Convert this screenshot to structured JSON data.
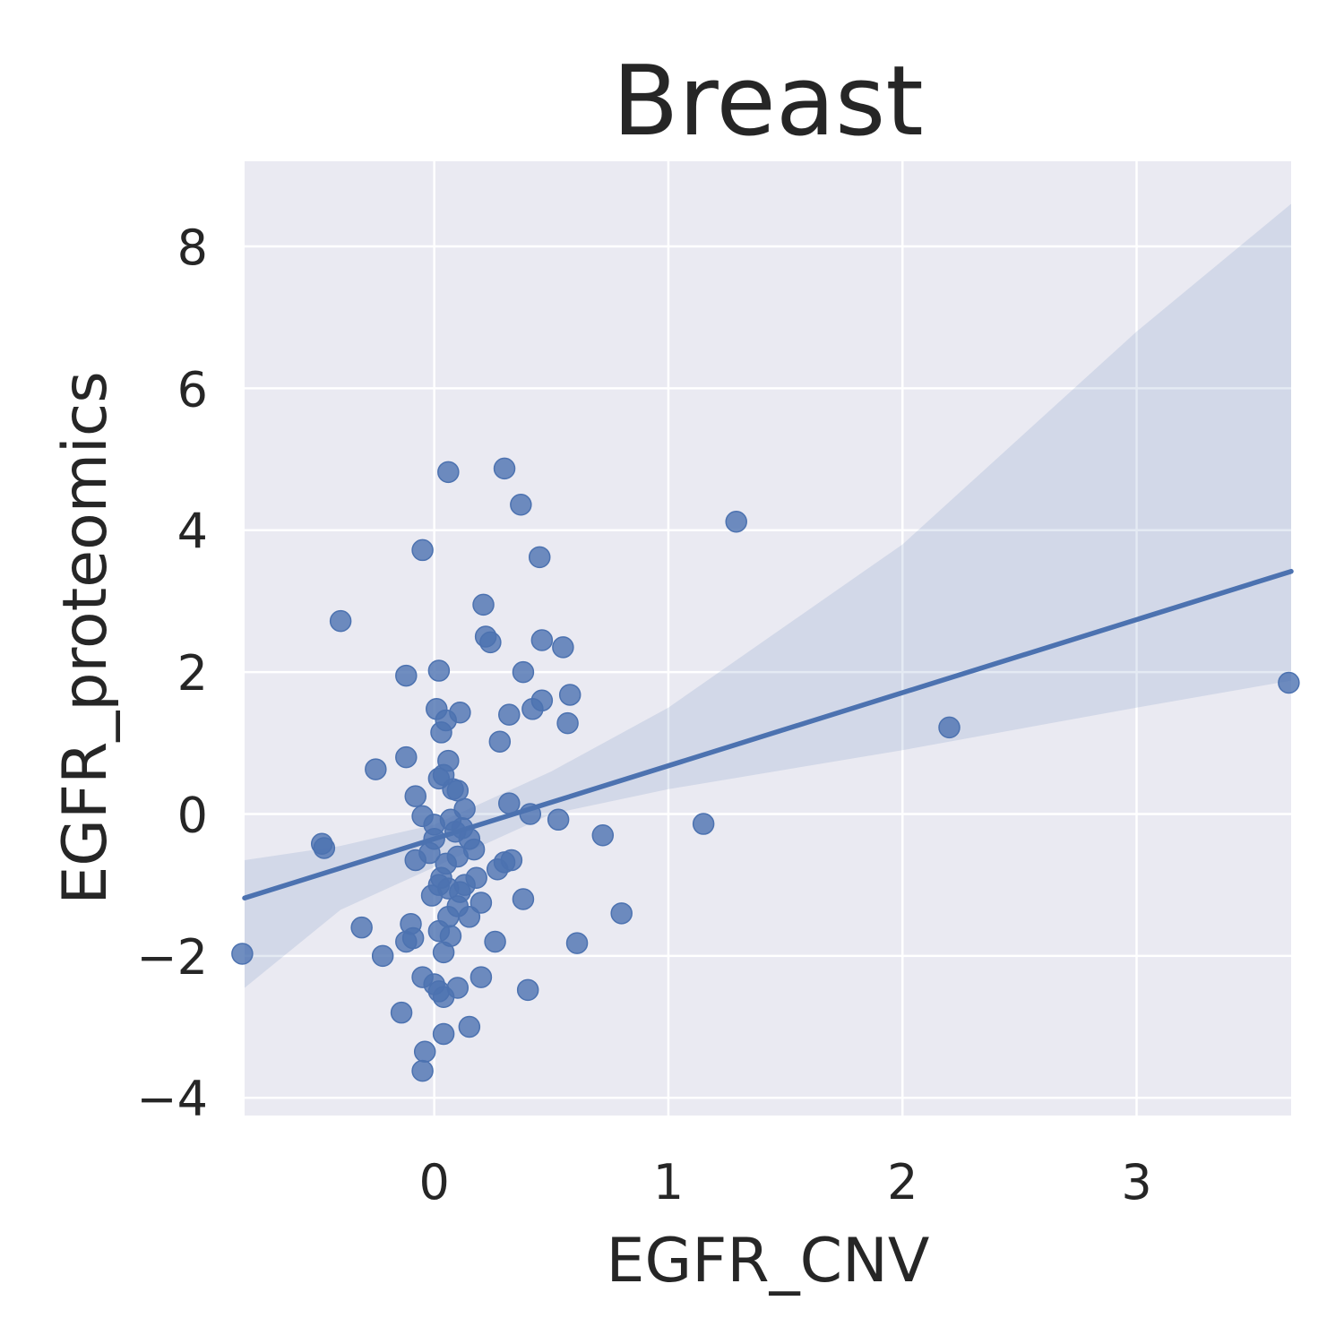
{
  "chart_data": {
    "type": "scatter",
    "title": "Breast",
    "xlabel": "EGFR_CNV",
    "ylabel": "EGFR_proteomics",
    "xlim": [
      -0.81,
      3.66
    ],
    "ylim": [
      -4.25,
      9.2
    ],
    "xticks": [
      0,
      1,
      2,
      3
    ],
    "yticks": [
      -4,
      -2,
      0,
      2,
      4,
      6,
      8
    ],
    "xtick_labels": [
      "0",
      "1",
      "2",
      "3"
    ],
    "ytick_labels": [
      "−4",
      "−2",
      "0",
      "2",
      "4",
      "6",
      "8"
    ],
    "grid": true,
    "colors": {
      "points": "#4c72b0",
      "line": "#4c72b0",
      "band": "#4c72b0",
      "background": "#eaeaf2",
      "grid": "#ffffff"
    },
    "regression": {
      "slope": 1.03,
      "intercept": -0.35
    },
    "confidence_band": {
      "x": [
        -0.81,
        -0.4,
        0.0,
        0.2,
        0.5,
        1.0,
        2.0,
        3.0,
        3.66
      ],
      "lower": [
        -2.45,
        -1.35,
        -0.75,
        -0.45,
        0.0,
        0.35,
        0.9,
        1.5,
        1.88
      ],
      "upper": [
        -0.65,
        -0.45,
        -0.15,
        0.15,
        0.6,
        1.5,
        3.8,
        6.8,
        8.6
      ]
    },
    "x": [
      0.06,
      0.3,
      0.37,
      -0.05,
      0.45,
      1.29,
      -0.4,
      0.21,
      0.22,
      0.24,
      0.46,
      0.55,
      0.02,
      -0.12,
      0.38,
      0.58,
      0.46,
      0.42,
      0.01,
      0.11,
      0.32,
      0.57,
      0.03,
      0.05,
      0.28,
      -0.12,
      0.06,
      -0.25,
      0.04,
      0.02,
      0.08,
      0.1,
      -0.08,
      0.32,
      0.13,
      0.41,
      0.53,
      0.72,
      1.15,
      0.07,
      -0.05,
      0.0,
      0.12,
      -0.48,
      -0.47,
      0.15,
      0.17,
      0.1,
      0.3,
      0.33,
      0.27,
      -0.08,
      0.05,
      0.18,
      0.13,
      0.02,
      0.06,
      -0.01,
      0.2,
      0.38,
      0.15,
      0.1,
      0.06,
      0.8,
      -0.1,
      -0.31,
      -0.12,
      0.26,
      0.61,
      -0.09,
      0.02,
      -0.22,
      0.04,
      -0.05,
      0.2,
      0.0,
      0.1,
      0.02,
      0.4,
      0.04,
      -0.14,
      0.15,
      0.04,
      -0.04,
      -0.05,
      2.2,
      3.65,
      -0.82,
      0.0,
      0.03,
      0.07,
      0.11,
      -0.02,
      0.09
    ],
    "y": [
      4.82,
      4.87,
      4.36,
      3.72,
      3.62,
      4.12,
      2.72,
      2.95,
      2.5,
      2.42,
      2.45,
      2.35,
      2.02,
      1.95,
      2.0,
      1.68,
      1.6,
      1.48,
      1.48,
      1.43,
      1.4,
      1.28,
      1.15,
      1.32,
      1.02,
      0.8,
      0.75,
      0.63,
      0.55,
      0.5,
      0.35,
      0.33,
      0.25,
      0.15,
      0.07,
      0.0,
      -0.08,
      -0.3,
      -0.14,
      -0.08,
      -0.03,
      -0.15,
      -0.2,
      -0.42,
      -0.48,
      -0.35,
      -0.5,
      -0.6,
      -0.68,
      -0.65,
      -0.78,
      -0.65,
      -0.7,
      -0.9,
      -1.0,
      -1.0,
      -1.05,
      -1.15,
      -1.25,
      -1.2,
      -1.45,
      -1.3,
      -1.45,
      -1.4,
      -1.55,
      -1.6,
      -1.8,
      -1.8,
      -1.82,
      -1.75,
      -1.65,
      -2.0,
      -1.95,
      -2.3,
      -2.3,
      -2.4,
      -2.45,
      -2.5,
      -2.48,
      -2.58,
      -2.8,
      -3.0,
      -3.1,
      -3.35,
      -3.62,
      1.22,
      1.85,
      -1.97,
      -0.35,
      -0.9,
      -1.72,
      -1.1,
      -0.55,
      -0.25
    ]
  }
}
